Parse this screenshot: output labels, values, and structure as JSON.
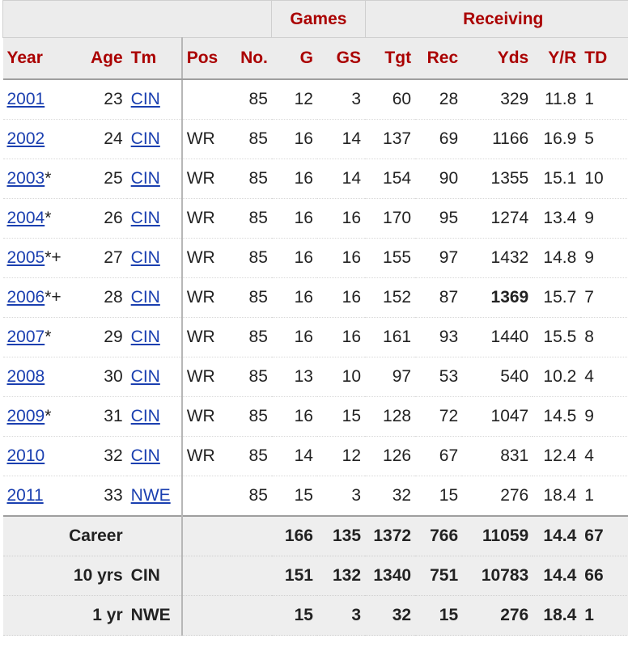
{
  "group_headers": {
    "games": "Games",
    "receiving": "Receiving"
  },
  "columns": [
    "Year",
    "Age",
    "Tm",
    "Pos",
    "No.",
    "G",
    "GS",
    "Tgt",
    "Rec",
    "Yds",
    "Y/R",
    "TD"
  ],
  "rows": [
    {
      "year": "2001",
      "mark": "",
      "age": "23",
      "tm": "CIN",
      "pos": "",
      "no": "85",
      "g": "12",
      "gs": "3",
      "tgt": "60",
      "rec": "28",
      "yds": "329",
      "yr": "11.8",
      "td": "1"
    },
    {
      "year": "2002",
      "mark": "",
      "age": "24",
      "tm": "CIN",
      "pos": "WR",
      "no": "85",
      "g": "16",
      "gs": "14",
      "tgt": "137",
      "rec": "69",
      "yds": "1166",
      "yr": "16.9",
      "td": "5"
    },
    {
      "year": "2003",
      "mark": "*",
      "age": "25",
      "tm": "CIN",
      "pos": "WR",
      "no": "85",
      "g": "16",
      "gs": "14",
      "tgt": "154",
      "rec": "90",
      "yds": "1355",
      "yr": "15.1",
      "td": "10"
    },
    {
      "year": "2004",
      "mark": "*",
      "age": "26",
      "tm": "CIN",
      "pos": "WR",
      "no": "85",
      "g": "16",
      "gs": "16",
      "tgt": "170",
      "rec": "95",
      "yds": "1274",
      "yr": "13.4",
      "td": "9"
    },
    {
      "year": "2005",
      "mark": "*+",
      "age": "27",
      "tm": "CIN",
      "pos": "WR",
      "no": "85",
      "g": "16",
      "gs": "16",
      "tgt": "155",
      "rec": "97",
      "yds": "1432",
      "yr": "14.8",
      "td": "9"
    },
    {
      "year": "2006",
      "mark": "*+",
      "age": "28",
      "tm": "CIN",
      "pos": "WR",
      "no": "85",
      "g": "16",
      "gs": "16",
      "tgt": "152",
      "rec": "87",
      "yds": "1369",
      "yr": "15.7",
      "td": "7",
      "yds_bold": true
    },
    {
      "year": "2007",
      "mark": "*",
      "age": "29",
      "tm": "CIN",
      "pos": "WR",
      "no": "85",
      "g": "16",
      "gs": "16",
      "tgt": "161",
      "rec": "93",
      "yds": "1440",
      "yr": "15.5",
      "td": "8"
    },
    {
      "year": "2008",
      "mark": "",
      "age": "30",
      "tm": "CIN",
      "pos": "WR",
      "no": "85",
      "g": "13",
      "gs": "10",
      "tgt": "97",
      "rec": "53",
      "yds": "540",
      "yr": "10.2",
      "td": "4"
    },
    {
      "year": "2009",
      "mark": "*",
      "age": "31",
      "tm": "CIN",
      "pos": "WR",
      "no": "85",
      "g": "16",
      "gs": "15",
      "tgt": "128",
      "rec": "72",
      "yds": "1047",
      "yr": "14.5",
      "td": "9"
    },
    {
      "year": "2010",
      "mark": "",
      "age": "32",
      "tm": "CIN",
      "pos": "WR",
      "no": "85",
      "g": "14",
      "gs": "12",
      "tgt": "126",
      "rec": "67",
      "yds": "831",
      "yr": "12.4",
      "td": "4"
    },
    {
      "year": "2011",
      "mark": "",
      "age": "33",
      "tm": "NWE",
      "pos": "",
      "no": "85",
      "g": "15",
      "gs": "3",
      "tgt": "32",
      "rec": "15",
      "yds": "276",
      "yr": "18.4",
      "td": "1"
    }
  ],
  "summary": [
    {
      "label": "Career",
      "tm": "",
      "g": "166",
      "gs": "135",
      "tgt": "1372",
      "rec": "766",
      "yds": "11059",
      "yr": "14.4",
      "td": "67"
    },
    {
      "label": "10 yrs",
      "tm": "CIN",
      "g": "151",
      "gs": "132",
      "tgt": "1340",
      "rec": "751",
      "yds": "10783",
      "yr": "14.4",
      "td": "66"
    },
    {
      "label": "1 yr",
      "tm": "NWE",
      "g": "15",
      "gs": "3",
      "tgt": "32",
      "rec": "15",
      "yds": "276",
      "yr": "18.4",
      "td": "1"
    }
  ]
}
